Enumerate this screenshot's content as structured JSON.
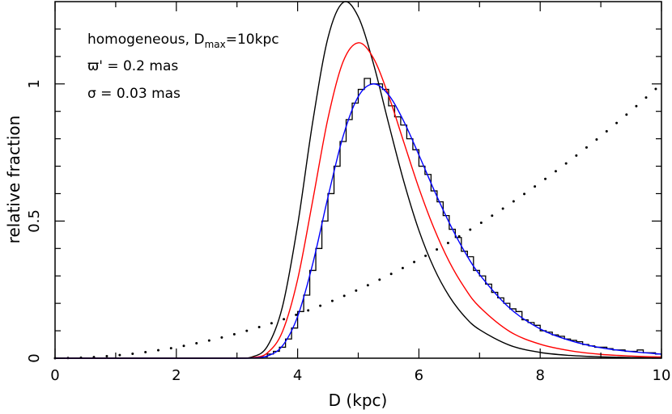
{
  "chart_data": {
    "type": "line",
    "xlabel": "D (kpc)",
    "ylabel": "relative fraction",
    "xlim": [
      0,
      10
    ],
    "ylim": [
      0,
      1.3
    ],
    "grid": false,
    "x_ticks": [
      0,
      2,
      4,
      6,
      8,
      10
    ],
    "x_tick_labels": [
      "0",
      "2",
      "4",
      "6",
      "8",
      "10"
    ],
    "y_ticks": [
      0,
      0.5,
      1
    ],
    "y_tick_labels": [
      "0",
      "0.5",
      "1"
    ],
    "annotations": [
      {
        "text": "homogeneous, D",
        "sub": "max",
        "tail": "=10kpc"
      },
      {
        "text": "ϖ' = 0.2 mas"
      },
      {
        "text": "σ = 0.03 mas"
      }
    ],
    "x": [
      0,
      1,
      2,
      3,
      3.25,
      3.5,
      3.75,
      4,
      4.25,
      4.5,
      4.75,
      5,
      5.25,
      5.5,
      5.75,
      6,
      6.25,
      6.5,
      6.75,
      7,
      7.5,
      8,
      8.5,
      9,
      9.5,
      10
    ],
    "series": [
      {
        "color": "#000000",
        "style": "solid",
        "values": [
          0,
          0,
          0,
          0.0002,
          0.0047,
          0.043,
          0.188,
          0.485,
          0.863,
          1.168,
          1.297,
          1.245,
          1.074,
          0.856,
          0.645,
          0.466,
          0.328,
          0.226,
          0.153,
          0.104,
          0.047,
          0.021,
          0.01,
          0.0048,
          0.0024,
          0.0012
        ]
      },
      {
        "color": "#ff0000",
        "style": "solid",
        "values": [
          0,
          0,
          0,
          0.0001,
          0.0018,
          0.019,
          0.097,
          0.287,
          0.576,
          0.874,
          1.081,
          1.15,
          1.094,
          0.957,
          0.788,
          0.62,
          0.473,
          0.352,
          0.258,
          0.187,
          0.097,
          0.051,
          0.027,
          0.014,
          0.008,
          0.0044
        ]
      },
      {
        "color": "#0000ff",
        "style": "solid",
        "values": [
          0,
          0,
          0,
          0,
          0.0006,
          0.0079,
          0.045,
          0.152,
          0.345,
          0.587,
          0.809,
          0.954,
          1.0,
          0.96,
          0.864,
          0.741,
          0.613,
          0.494,
          0.39,
          0.305,
          0.182,
          0.107,
          0.064,
          0.038,
          0.024,
          0.015
        ]
      }
    ],
    "prior": {
      "color": "#000000",
      "style": "dotted",
      "x": [
        0,
        0.5,
        1,
        1.5,
        2,
        2.5,
        3,
        3.5,
        4,
        4.5,
        5,
        5.5,
        6,
        6.5,
        7,
        7.5,
        8,
        8.5,
        9,
        9.5,
        10
      ],
      "values": [
        0,
        0.0025,
        0.01,
        0.0225,
        0.04,
        0.0625,
        0.09,
        0.1225,
        0.16,
        0.2025,
        0.25,
        0.3025,
        0.36,
        0.4225,
        0.49,
        0.5625,
        0.64,
        0.7225,
        0.81,
        0.9025,
        1.0
      ]
    },
    "histogram": {
      "color": "#000000",
      "bin_start": 3.4,
      "bin_width": 0.1,
      "values": [
        0.005,
        0.015,
        0.025,
        0.04,
        0.07,
        0.11,
        0.17,
        0.23,
        0.32,
        0.4,
        0.5,
        0.6,
        0.7,
        0.79,
        0.87,
        0.93,
        0.98,
        1.02,
        1.0,
        1.0,
        0.98,
        0.92,
        0.88,
        0.85,
        0.8,
        0.76,
        0.7,
        0.67,
        0.61,
        0.57,
        0.52,
        0.47,
        0.44,
        0.39,
        0.37,
        0.32,
        0.3,
        0.27,
        0.24,
        0.22,
        0.2,
        0.18,
        0.17,
        0.14,
        0.13,
        0.12,
        0.1,
        0.095,
        0.085,
        0.08,
        0.07,
        0.065,
        0.06,
        0.05,
        0.045,
        0.04,
        0.04,
        0.035,
        0.03,
        0.03,
        0.025,
        0.025,
        0.03,
        0.02,
        0.02,
        0.015
      ]
    }
  }
}
